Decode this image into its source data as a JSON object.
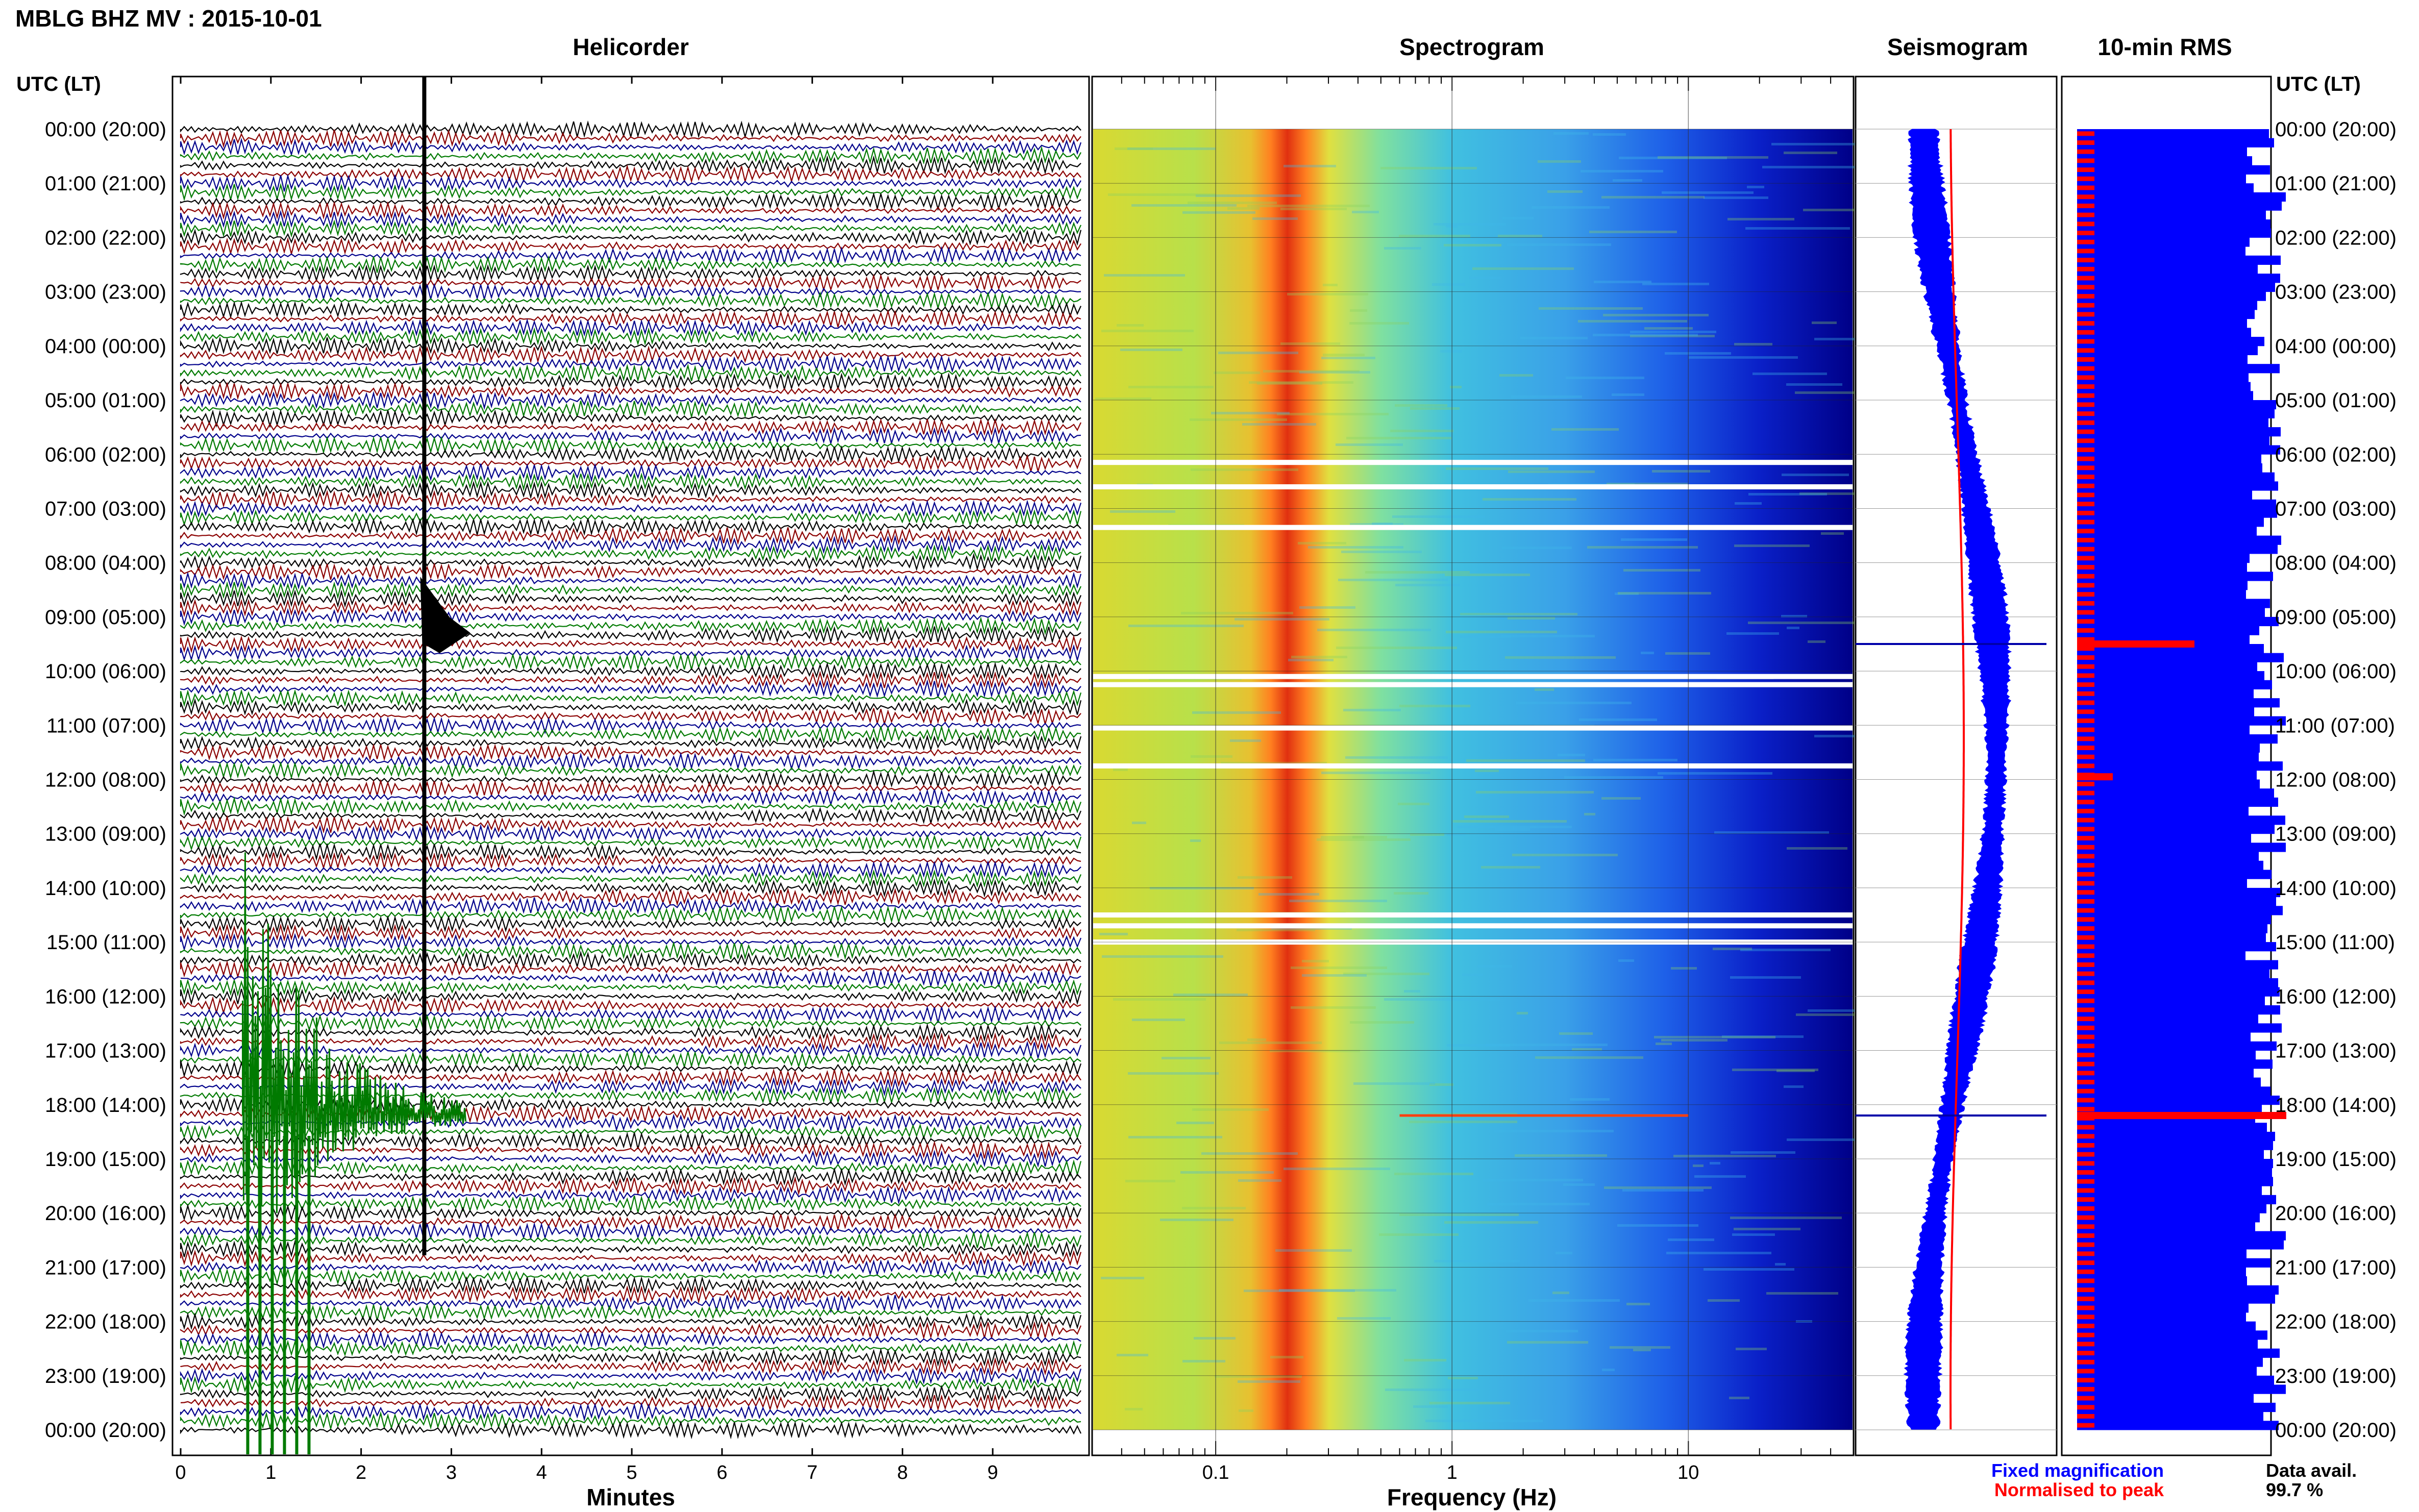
{
  "title": "MBLG BHZ MV : 2015-10-01",
  "colors": {
    "trace_cycle": [
      "#000000",
      "#8b0000",
      "#00008b",
      "#007a00"
    ],
    "fixed_mag": "#0000ff",
    "normalised": "#ff0000",
    "rms_bar": "#0000ff",
    "rms_mark": "#ff0000"
  },
  "time_axis": {
    "heading": "UTC (LT)",
    "labels": [
      "00:00 (20:00)",
      "01:00 (21:00)",
      "02:00 (22:00)",
      "03:00 (23:00)",
      "04:00 (00:00)",
      "05:00 (01:00)",
      "06:00 (02:00)",
      "07:00 (03:00)",
      "08:00 (04:00)",
      "09:00 (05:00)",
      "10:00 (06:00)",
      "11:00 (07:00)",
      "12:00 (08:00)",
      "13:00 (09:00)",
      "14:00 (10:00)",
      "15:00 (11:00)",
      "16:00 (12:00)",
      "17:00 (13:00)",
      "18:00 (14:00)",
      "19:00 (15:00)",
      "20:00 (16:00)",
      "21:00 (17:00)",
      "22:00 (18:00)",
      "23:00 (19:00)",
      "00:00 (20:00)"
    ]
  },
  "panels": {
    "helicorder": {
      "title": "Helicorder",
      "xlabel": "Minutes",
      "ticks": [
        "0",
        "1",
        "2",
        "3",
        "4",
        "5",
        "6",
        "7",
        "8",
        "9"
      ],
      "rows_per_hour": 6
    },
    "spectrogram": {
      "title": "Spectrogram",
      "xlabel": "Frequency (Hz)",
      "ticks": [
        "0.1",
        "1",
        "10"
      ]
    },
    "seismogram": {
      "title": "Seismogram"
    },
    "rms": {
      "title": "10-min RMS"
    }
  },
  "legend": {
    "fixed": "Fixed magnification",
    "normalised": "Normalised to peak",
    "avail_label": "Data avail.",
    "avail_value": "99.7 %"
  },
  "chart_data": {
    "type": "heatmap",
    "time_range_hours": [
      0,
      24
    ],
    "frequency_range_hz": [
      0.03,
      50
    ],
    "frequency_scale": "log",
    "microseism_peak_hz": 0.2,
    "events": [
      {
        "hour": 9.5,
        "description": "transient",
        "minutes": 2.7
      },
      {
        "hour": 18.2,
        "description": "large event",
        "minutes": 0.8
      }
    ],
    "data_gaps_hours": [
      6.15,
      6.6,
      7.35,
      10.1,
      10.25,
      11.05,
      11.75,
      14.5,
      14.7,
      15.0
    ]
  }
}
